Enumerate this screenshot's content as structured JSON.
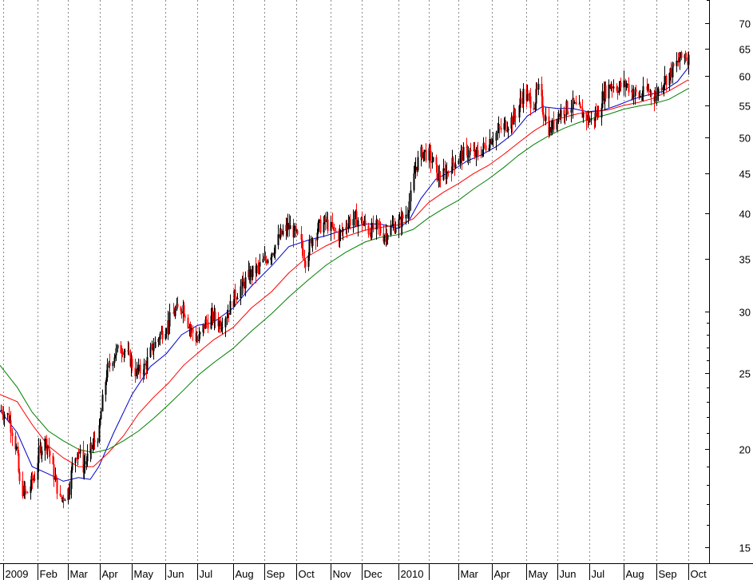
{
  "chart_data": {
    "type": "candlestick",
    "title": "",
    "xlabel": "",
    "ylabel": "",
    "y_scale": "log",
    "ylim": [
      14.3,
      75
    ],
    "y_ticks": [
      15,
      20,
      25,
      30,
      35,
      40,
      45,
      50,
      55,
      60,
      65,
      70
    ],
    "y_minor_ticks": [
      16,
      17,
      18,
      19,
      21,
      22,
      23,
      24,
      26,
      27,
      28,
      29,
      75
    ],
    "x_range": [
      "2008-12-29",
      "2010-10-04"
    ],
    "x_labels": [
      {
        "date": "2009-01-01",
        "label": "2009"
      },
      {
        "date": "2009-02-02",
        "label": "Feb"
      },
      {
        "date": "2009-03-02",
        "label": "Mar"
      },
      {
        "date": "2009-04-01",
        "label": "Apr"
      },
      {
        "date": "2009-05-01",
        "label": "May"
      },
      {
        "date": "2009-06-01",
        "label": "Jun"
      },
      {
        "date": "2009-07-01",
        "label": "Jul"
      },
      {
        "date": "2009-08-03",
        "label": "Aug"
      },
      {
        "date": "2009-09-01",
        "label": "Sep"
      },
      {
        "date": "2009-10-01",
        "label": "Oct"
      },
      {
        "date": "2009-11-02",
        "label": "Nov"
      },
      {
        "date": "2009-12-01",
        "label": "Dec"
      },
      {
        "date": "2010-01-04",
        "label": "2010"
      },
      {
        "date": "2010-02-01",
        "label": ""
      },
      {
        "date": "2010-03-01",
        "label": "Mar"
      },
      {
        "date": "2010-04-01",
        "label": "Apr"
      },
      {
        "date": "2010-05-03",
        "label": "May"
      },
      {
        "date": "2010-06-01",
        "label": "Jun"
      },
      {
        "date": "2010-07-01",
        "label": "Jul"
      },
      {
        "date": "2010-08-02",
        "label": "Aug"
      },
      {
        "date": "2010-09-01",
        "label": "Sep"
      },
      {
        "date": "2010-10-01",
        "label": "Oct"
      }
    ],
    "grid": {
      "vertical": true,
      "horizontal": false,
      "style": "dotted"
    },
    "colors": {
      "up": "#000000",
      "down": "#ff0000",
      "ma_short": "#0000cc",
      "ma_mid": "#ff0000",
      "ma_long": "#008000"
    },
    "price_path": [
      [
        "2008-12-29",
        22.5
      ],
      [
        "2009-01-06",
        22.0
      ],
      [
        "2009-01-13",
        20.0
      ],
      [
        "2009-01-16",
        18.0
      ],
      [
        "2009-01-22",
        17.5
      ],
      [
        "2009-01-30",
        18.5
      ],
      [
        "2009-02-04",
        20.0
      ],
      [
        "2009-02-10",
        20.5
      ],
      [
        "2009-02-16",
        18.8
      ],
      [
        "2009-02-23",
        17.2
      ],
      [
        "2009-03-03",
        17.8
      ],
      [
        "2009-03-06",
        19.0
      ],
      [
        "2009-03-11",
        20.0
      ],
      [
        "2009-03-16",
        19.0
      ],
      [
        "2009-03-20",
        19.5
      ],
      [
        "2009-03-25",
        20.2
      ],
      [
        "2009-03-31",
        21.0
      ],
      [
        "2009-04-03",
        23.0
      ],
      [
        "2009-04-07",
        25.0
      ],
      [
        "2009-04-14",
        26.5
      ],
      [
        "2009-04-22",
        27.0
      ],
      [
        "2009-04-29",
        26.0
      ],
      [
        "2009-05-05",
        25.0
      ],
      [
        "2009-05-13",
        25.5
      ],
      [
        "2009-05-20",
        27.0
      ],
      [
        "2009-05-27",
        28.0
      ],
      [
        "2009-06-03",
        29.0
      ],
      [
        "2009-06-10",
        30.0
      ],
      [
        "2009-06-17",
        30.5
      ],
      [
        "2009-06-24",
        28.5
      ],
      [
        "2009-07-01",
        27.5
      ],
      [
        "2009-07-08",
        29.0
      ],
      [
        "2009-07-15",
        29.5
      ],
      [
        "2009-07-22",
        29.0
      ],
      [
        "2009-07-29",
        30.0
      ],
      [
        "2009-08-05",
        31.5
      ],
      [
        "2009-08-12",
        32.5
      ],
      [
        "2009-08-19",
        33.5
      ],
      [
        "2009-08-26",
        34.0
      ],
      [
        "2009-09-02",
        35.0
      ],
      [
        "2009-09-09",
        36.0
      ],
      [
        "2009-09-16",
        37.5
      ],
      [
        "2009-09-23",
        38.5
      ],
      [
        "2009-09-28",
        38.0
      ],
      [
        "2009-10-05",
        36.5
      ],
      [
        "2009-10-09",
        35.0
      ],
      [
        "2009-10-15",
        37.0
      ],
      [
        "2009-10-22",
        38.5
      ],
      [
        "2009-10-28",
        39.0
      ],
      [
        "2009-11-04",
        38.0
      ],
      [
        "2009-11-10",
        37.5
      ],
      [
        "2009-11-17",
        39.0
      ],
      [
        "2009-11-24",
        39.5
      ],
      [
        "2009-12-01",
        39.0
      ],
      [
        "2009-12-08",
        38.0
      ],
      [
        "2009-12-15",
        38.5
      ],
      [
        "2009-12-21",
        37.5
      ],
      [
        "2009-12-29",
        38.5
      ],
      [
        "2010-01-05",
        39.0
      ],
      [
        "2010-01-11",
        40.0
      ],
      [
        "2010-01-15",
        42.0
      ],
      [
        "2010-01-20",
        46.0
      ],
      [
        "2010-01-26",
        48.0
      ],
      [
        "2010-02-01",
        47.5
      ],
      [
        "2010-02-05",
        46.5
      ],
      [
        "2010-02-10",
        44.5
      ],
      [
        "2010-02-17",
        45.0
      ],
      [
        "2010-02-24",
        46.5
      ],
      [
        "2010-03-03",
        47.5
      ],
      [
        "2010-03-10",
        48.0
      ],
      [
        "2010-03-17",
        47.5
      ],
      [
        "2010-03-24",
        48.5
      ],
      [
        "2010-03-31",
        50.0
      ],
      [
        "2010-04-07",
        51.0
      ],
      [
        "2010-04-14",
        52.0
      ],
      [
        "2010-04-21",
        53.0
      ],
      [
        "2010-04-26",
        55.0
      ],
      [
        "2010-04-30",
        57.0
      ],
      [
        "2010-05-05",
        56.0
      ],
      [
        "2010-05-10",
        55.5
      ],
      [
        "2010-05-14",
        57.5
      ],
      [
        "2010-05-19",
        54.0
      ],
      [
        "2010-05-25",
        51.0
      ],
      [
        "2010-06-01",
        53.5
      ],
      [
        "2010-06-08",
        54.5
      ],
      [
        "2010-06-15",
        55.0
      ],
      [
        "2010-06-22",
        54.0
      ],
      [
        "2010-06-29",
        53.0
      ],
      [
        "2010-07-02",
        52.5
      ],
      [
        "2010-07-09",
        54.0
      ],
      [
        "2010-07-14",
        57.0
      ],
      [
        "2010-07-21",
        58.5
      ],
      [
        "2010-07-28",
        58.0
      ],
      [
        "2010-08-04",
        58.5
      ],
      [
        "2010-08-11",
        57.0
      ],
      [
        "2010-08-17",
        56.5
      ],
      [
        "2010-08-24",
        57.5
      ],
      [
        "2010-08-31",
        56.5
      ],
      [
        "2010-09-07",
        59.0
      ],
      [
        "2010-09-14",
        60.5
      ],
      [
        "2010-09-21",
        62.5
      ],
      [
        "2010-09-28",
        64.0
      ],
      [
        "2010-10-01",
        63.0
      ]
    ],
    "series": [
      {
        "values": [
          [
            "2008-12-29",
            22.4
          ],
          [
            "2009-01-14",
            21.0
          ],
          [
            "2009-01-28",
            19.0
          ],
          [
            "2009-02-12",
            18.6
          ],
          [
            "2009-02-26",
            18.2
          ],
          [
            "2009-03-12",
            18.4
          ],
          [
            "2009-03-23",
            18.3
          ],
          [
            "2009-03-31",
            19.0
          ],
          [
            "2009-04-14",
            21.0
          ],
          [
            "2009-05-01",
            23.5
          ],
          [
            "2009-05-18",
            25.5
          ],
          [
            "2009-06-02",
            26.5
          ],
          [
            "2009-06-16",
            28.0
          ],
          [
            "2009-07-01",
            28.8
          ],
          [
            "2009-07-15",
            29.0
          ],
          [
            "2009-08-03",
            30.3
          ],
          [
            "2009-08-20",
            32.3
          ],
          [
            "2009-09-08",
            34.3
          ],
          [
            "2009-09-24",
            36.3
          ],
          [
            "2009-10-12",
            37.0
          ],
          [
            "2009-10-29",
            37.5
          ],
          [
            "2009-11-16",
            38.2
          ],
          [
            "2009-12-04",
            38.8
          ],
          [
            "2009-12-18",
            38.8
          ],
          [
            "2010-01-04",
            38.3
          ],
          [
            "2010-01-14",
            39.2
          ],
          [
            "2010-01-25",
            41.8
          ],
          [
            "2010-02-08",
            44.3
          ],
          [
            "2010-02-22",
            45.3
          ],
          [
            "2010-03-09",
            46.7
          ],
          [
            "2010-03-23",
            47.6
          ],
          [
            "2010-04-06",
            48.8
          ],
          [
            "2010-04-20",
            50.5
          ],
          [
            "2010-05-04",
            53.3
          ],
          [
            "2010-05-18",
            54.8
          ],
          [
            "2010-06-01",
            54.5
          ],
          [
            "2010-06-15",
            54.5
          ],
          [
            "2010-06-29",
            54.0
          ],
          [
            "2010-07-13",
            54.2
          ],
          [
            "2010-07-27",
            55.0
          ],
          [
            "2010-08-10",
            56.0
          ],
          [
            "2010-08-24",
            56.7
          ],
          [
            "2010-09-07",
            57.3
          ],
          [
            "2010-09-21",
            59.0
          ],
          [
            "2010-10-01",
            61.5
          ]
        ]
      },
      {
        "values": [
          [
            "2008-12-29",
            23.5
          ],
          [
            "2009-01-14",
            23.0
          ],
          [
            "2009-01-28",
            21.5
          ],
          [
            "2009-02-12",
            20.2
          ],
          [
            "2009-02-26",
            19.5
          ],
          [
            "2009-03-12",
            19.0
          ],
          [
            "2009-03-26",
            19.0
          ],
          [
            "2009-04-09",
            19.8
          ],
          [
            "2009-04-23",
            20.8
          ],
          [
            "2009-05-07",
            22.2
          ],
          [
            "2009-05-21",
            23.3
          ],
          [
            "2009-06-04",
            24.3
          ],
          [
            "2009-06-18",
            25.6
          ],
          [
            "2009-07-02",
            26.6
          ],
          [
            "2009-07-16",
            27.6
          ],
          [
            "2009-08-03",
            28.6
          ],
          [
            "2009-08-20",
            30.3
          ],
          [
            "2009-09-08",
            31.8
          ],
          [
            "2009-09-24",
            33.6
          ],
          [
            "2009-10-12",
            35.3
          ],
          [
            "2009-10-29",
            36.4
          ],
          [
            "2009-11-16",
            37.4
          ],
          [
            "2009-12-04",
            38.1
          ],
          [
            "2009-12-18",
            38.4
          ],
          [
            "2010-01-04",
            38.7
          ],
          [
            "2010-01-18",
            39.4
          ],
          [
            "2010-02-01",
            41.3
          ],
          [
            "2010-02-15",
            42.6
          ],
          [
            "2010-03-01",
            43.7
          ],
          [
            "2010-03-15",
            45.0
          ],
          [
            "2010-03-29",
            46.1
          ],
          [
            "2010-04-12",
            47.6
          ],
          [
            "2010-04-26",
            49.3
          ],
          [
            "2010-05-10",
            51.0
          ],
          [
            "2010-05-24",
            52.4
          ],
          [
            "2010-06-07",
            53.1
          ],
          [
            "2010-06-21",
            53.7
          ],
          [
            "2010-07-05",
            54.0
          ],
          [
            "2010-07-19",
            54.3
          ],
          [
            "2010-08-02",
            55.0
          ],
          [
            "2010-08-16",
            55.5
          ],
          [
            "2010-08-30",
            56.2
          ],
          [
            "2010-09-13",
            57.4
          ],
          [
            "2010-10-01",
            59.3
          ]
        ]
      },
      {
        "values": [
          [
            "2008-12-29",
            25.6
          ],
          [
            "2009-01-14",
            24.0
          ],
          [
            "2009-01-28",
            22.3
          ],
          [
            "2009-02-12",
            21.1
          ],
          [
            "2009-02-26",
            20.5
          ],
          [
            "2009-03-12",
            20.0
          ],
          [
            "2009-03-26",
            19.8
          ],
          [
            "2009-04-09",
            20.0
          ],
          [
            "2009-04-23",
            20.5
          ],
          [
            "2009-05-07",
            21.1
          ],
          [
            "2009-05-21",
            21.9
          ],
          [
            "2009-06-04",
            22.8
          ],
          [
            "2009-06-18",
            23.8
          ],
          [
            "2009-07-02",
            24.9
          ],
          [
            "2009-07-16",
            25.8
          ],
          [
            "2009-08-03",
            26.9
          ],
          [
            "2009-08-20",
            28.3
          ],
          [
            "2009-09-08",
            29.8
          ],
          [
            "2009-09-24",
            31.3
          ],
          [
            "2009-10-12",
            32.9
          ],
          [
            "2009-10-29",
            34.4
          ],
          [
            "2009-11-16",
            35.7
          ],
          [
            "2009-12-04",
            36.8
          ],
          [
            "2009-12-18",
            37.3
          ],
          [
            "2010-01-04",
            37.6
          ],
          [
            "2010-01-18",
            38.2
          ],
          [
            "2010-02-01",
            39.5
          ],
          [
            "2010-02-15",
            40.6
          ],
          [
            "2010-03-01",
            41.6
          ],
          [
            "2010-03-15",
            43.0
          ],
          [
            "2010-03-29",
            44.3
          ],
          [
            "2010-04-12",
            45.8
          ],
          [
            "2010-04-26",
            47.5
          ],
          [
            "2010-05-10",
            49.0
          ],
          [
            "2010-05-24",
            50.3
          ],
          [
            "2010-06-07",
            51.4
          ],
          [
            "2010-06-21",
            52.3
          ],
          [
            "2010-07-05",
            53.0
          ],
          [
            "2010-07-19",
            53.6
          ],
          [
            "2010-08-02",
            54.4
          ],
          [
            "2010-08-16",
            54.9
          ],
          [
            "2010-08-30",
            55.3
          ],
          [
            "2010-09-13",
            56.0
          ],
          [
            "2010-10-01",
            57.8
          ]
        ]
      }
    ]
  }
}
